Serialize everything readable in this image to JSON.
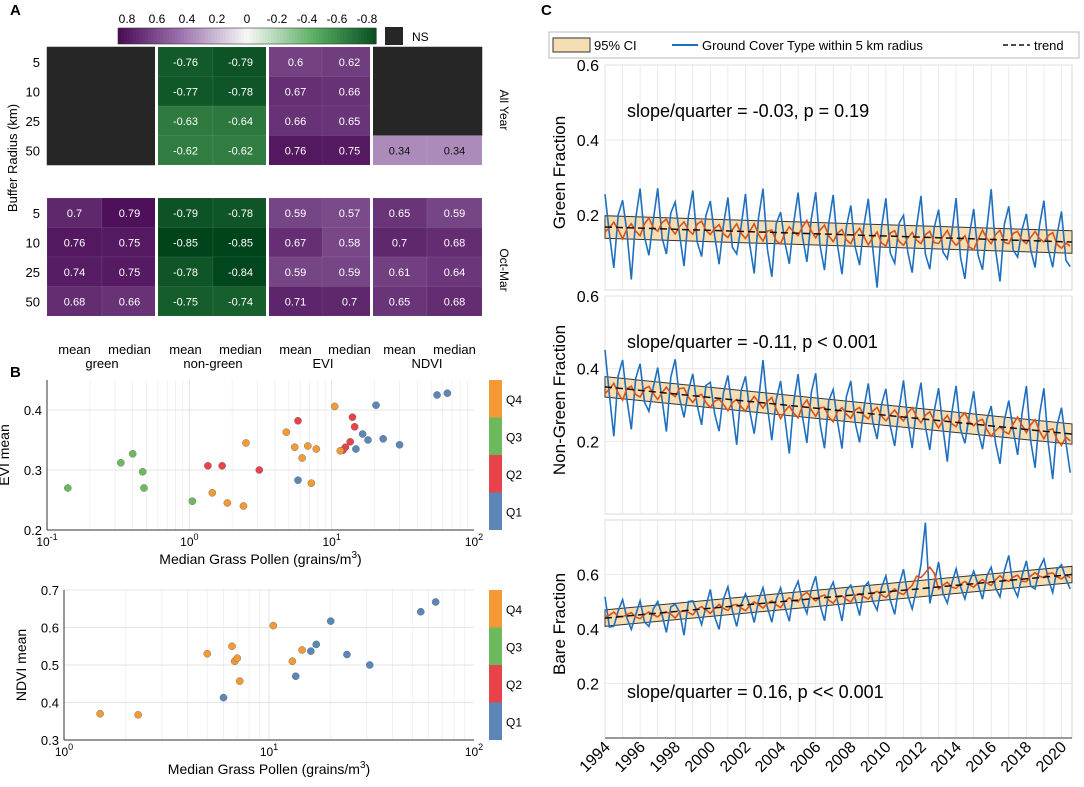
{
  "panel_labels": {
    "a": "A",
    "b": "B",
    "c": "C"
  },
  "colors": {
    "ns": "#262626",
    "series_blue": "#1f6fbf",
    "series_orange": "#d95319",
    "ci_fill": "#f5deb3",
    "q1": "#5b86b8",
    "q2": "#e8424a",
    "q3": "#6dba5e",
    "q4": "#f39a36"
  },
  "panel_a": {
    "colorbar_ticks": [
      "0.8",
      "0.6",
      "0.4",
      "0.2",
      "0",
      "-0.2",
      "-0.4",
      "-0.6",
      "-0.8"
    ],
    "ns_label": "NS",
    "ylabel": "Buffer Radius (km)",
    "row_labels": [
      "5",
      "10",
      "25",
      "50"
    ],
    "section_labels": [
      "All Year",
      "Oct-Mar"
    ],
    "columns": [
      "mean",
      "median",
      "mean",
      "median",
      "mean",
      "median",
      "mean",
      "median"
    ],
    "groups": [
      "green",
      "non-green",
      "EVI",
      "NDVI"
    ],
    "all_year": [
      [
        null,
        null,
        -0.76,
        -0.79,
        0.6,
        0.62,
        null,
        null
      ],
      [
        null,
        null,
        -0.77,
        -0.78,
        0.67,
        0.66,
        null,
        null
      ],
      [
        null,
        null,
        -0.63,
        -0.64,
        0.66,
        0.65,
        null,
        null
      ],
      [
        null,
        null,
        -0.62,
        -0.62,
        0.76,
        0.75,
        0.34,
        0.34
      ]
    ],
    "oct_mar": [
      [
        0.7,
        0.79,
        -0.79,
        -0.78,
        0.59,
        0.57,
        0.65,
        0.59
      ],
      [
        0.76,
        0.75,
        -0.85,
        -0.85,
        0.67,
        0.58,
        0.7,
        0.68
      ],
      [
        0.74,
        0.75,
        -0.78,
        -0.84,
        0.59,
        0.59,
        0.61,
        0.64
      ],
      [
        0.68,
        0.66,
        -0.75,
        -0.74,
        0.71,
        0.7,
        0.65,
        0.68
      ]
    ]
  },
  "chart_data": [
    {
      "type": "scatter",
      "id": "evi",
      "ylabel": "EVI mean",
      "xlabel": "Median Grass Pollen (grains/m",
      "xlabel_sup": "3",
      "xlabel_end": ")",
      "xscale": "log",
      "xlim": [
        0.1,
        100
      ],
      "ylim": [
        0.2,
        0.45
      ],
      "xtick_bases": [
        "10",
        "10",
        "10",
        "10"
      ],
      "xtick_exps": [
        "-1",
        "0",
        "1",
        "2"
      ],
      "ytick_labels": [
        "0.2",
        "0.3",
        "0.4"
      ],
      "legend": [
        "Q4",
        "Q3",
        "Q2",
        "Q1"
      ],
      "points": [
        {
          "x": 0.14,
          "y": 0.27,
          "q": "Q3"
        },
        {
          "x": 0.33,
          "y": 0.312,
          "q": "Q3"
        },
        {
          "x": 0.4,
          "y": 0.327,
          "q": "Q3"
        },
        {
          "x": 0.47,
          "y": 0.297,
          "q": "Q3"
        },
        {
          "x": 0.48,
          "y": 0.27,
          "q": "Q3"
        },
        {
          "x": 1.05,
          "y": 0.248,
          "q": "Q3"
        },
        {
          "x": 1.35,
          "y": 0.307,
          "q": "Q2"
        },
        {
          "x": 1.7,
          "y": 0.307,
          "q": "Q2"
        },
        {
          "x": 3.1,
          "y": 0.3,
          "q": "Q2"
        },
        {
          "x": 5.8,
          "y": 0.382,
          "q": "Q2"
        },
        {
          "x": 12.5,
          "y": 0.338,
          "q": "Q2"
        },
        {
          "x": 13.5,
          "y": 0.347,
          "q": "Q2"
        },
        {
          "x": 14.0,
          "y": 0.388,
          "q": "Q2"
        },
        {
          "x": 14.5,
          "y": 0.372,
          "q": "Q2"
        },
        {
          "x": 12.0,
          "y": 0.333,
          "q": "Q2"
        },
        {
          "x": 1.45,
          "y": 0.262,
          "q": "Q4"
        },
        {
          "x": 1.85,
          "y": 0.245,
          "q": "Q4"
        },
        {
          "x": 2.5,
          "y": 0.345,
          "q": "Q4"
        },
        {
          "x": 4.8,
          "y": 0.363,
          "q": "Q4"
        },
        {
          "x": 5.5,
          "y": 0.338,
          "q": "Q4"
        },
        {
          "x": 6.2,
          "y": 0.32,
          "q": "Q4"
        },
        {
          "x": 6.8,
          "y": 0.34,
          "q": "Q4"
        },
        {
          "x": 7.2,
          "y": 0.278,
          "q": "Q4"
        },
        {
          "x": 7.8,
          "y": 0.335,
          "q": "Q4"
        },
        {
          "x": 10.5,
          "y": 0.406,
          "q": "Q4"
        },
        {
          "x": 11.5,
          "y": 0.332,
          "q": "Q4"
        },
        {
          "x": 2.4,
          "y": 0.24,
          "q": "Q4"
        },
        {
          "x": 5.8,
          "y": 0.283,
          "q": "Q1"
        },
        {
          "x": 14.8,
          "y": 0.335,
          "q": "Q1"
        },
        {
          "x": 16.5,
          "y": 0.36,
          "q": "Q1"
        },
        {
          "x": 18.0,
          "y": 0.35,
          "q": "Q1"
        },
        {
          "x": 20.5,
          "y": 0.408,
          "q": "Q1"
        },
        {
          "x": 23.0,
          "y": 0.352,
          "q": "Q1"
        },
        {
          "x": 30.0,
          "y": 0.342,
          "q": "Q1"
        },
        {
          "x": 55.0,
          "y": 0.425,
          "q": "Q1"
        },
        {
          "x": 65.0,
          "y": 0.428,
          "q": "Q1"
        }
      ]
    },
    {
      "type": "scatter",
      "id": "ndvi",
      "ylabel": "NDVI mean",
      "xlabel": "Median Grass Pollen (grains/m",
      "xlabel_sup": "3",
      "xlabel_end": ")",
      "xscale": "log",
      "xlim": [
        1,
        100
      ],
      "ylim": [
        0.3,
        0.7
      ],
      "xtick_bases": [
        "10",
        "10",
        "10"
      ],
      "xtick_exps": [
        "0",
        "1",
        "2"
      ],
      "ytick_labels": [
        "0.3",
        "0.4",
        "0.5",
        "0.6",
        "0.7"
      ],
      "legend": [
        "Q4",
        "Q3",
        "Q2",
        "Q1"
      ],
      "points": [
        {
          "x": 1.5,
          "y": 0.37,
          "q": "Q4"
        },
        {
          "x": 2.3,
          "y": 0.367,
          "q": "Q4"
        },
        {
          "x": 5.0,
          "y": 0.53,
          "q": "Q4"
        },
        {
          "x": 6.6,
          "y": 0.55,
          "q": "Q4"
        },
        {
          "x": 6.8,
          "y": 0.51,
          "q": "Q4"
        },
        {
          "x": 7.2,
          "y": 0.457,
          "q": "Q4"
        },
        {
          "x": 7.0,
          "y": 0.518,
          "q": "Q4"
        },
        {
          "x": 10.5,
          "y": 0.605,
          "q": "Q4"
        },
        {
          "x": 13.0,
          "y": 0.51,
          "q": "Q4"
        },
        {
          "x": 14.5,
          "y": 0.54,
          "q": "Q4"
        },
        {
          "x": 6.0,
          "y": 0.413,
          "q": "Q1"
        },
        {
          "x": 13.5,
          "y": 0.47,
          "q": "Q1"
        },
        {
          "x": 16.0,
          "y": 0.537,
          "q": "Q1"
        },
        {
          "x": 17.0,
          "y": 0.555,
          "q": "Q1"
        },
        {
          "x": 20.0,
          "y": 0.617,
          "q": "Q1"
        },
        {
          "x": 24.0,
          "y": 0.528,
          "q": "Q1"
        },
        {
          "x": 31.0,
          "y": 0.5,
          "q": "Q1"
        },
        {
          "x": 55.0,
          "y": 0.642,
          "q": "Q1"
        },
        {
          "x": 65.0,
          "y": 0.668,
          "q": "Q1"
        }
      ]
    },
    {
      "type": "line",
      "id": "green",
      "ylabel": "Green Fraction",
      "annotation": "slope/quarter = -0.03, p = 0.19",
      "ylim": [
        0,
        0.6
      ],
      "ytick_labels": [
        "0.2",
        "0.4",
        "0.6"
      ],
      "trend": [
        0.168,
        0.128
      ],
      "ci_halfwidth": 0.03,
      "spike": null
    },
    {
      "type": "line",
      "id": "nongreen",
      "ylabel": "Non-Green Fraction",
      "annotation": "slope/quarter = -0.11, p < 0.001",
      "ylim": [
        0,
        0.6
      ],
      "ytick_labels": [
        "0.2",
        "0.4",
        "0.6"
      ],
      "trend": [
        0.35,
        0.22
      ],
      "ci_halfwidth": 0.028,
      "spike": null
    },
    {
      "type": "line",
      "id": "bare",
      "ylabel": "Bare Fraction",
      "annotation": "slope/quarter = 0.16, p << 0.001",
      "ylim": [
        0,
        0.8
      ],
      "ytick_labels": [
        "0.2",
        "0.4",
        "0.6"
      ],
      "trend": [
        0.44,
        0.6
      ],
      "ci_halfwidth": 0.03,
      "spike": 0.79
    }
  ],
  "panel_c": {
    "legend": {
      "ci": "95% CI",
      "series": "Ground Cover Type within 5 km radius",
      "trend": "trend"
    },
    "year_start": 1994,
    "year_end": 2020.6,
    "year_labels": [
      "1994",
      "1996",
      "1998",
      "2000",
      "2002",
      "2004",
      "2006",
      "2008",
      "2010",
      "2012",
      "2014",
      "2016",
      "2018",
      "2020"
    ]
  }
}
